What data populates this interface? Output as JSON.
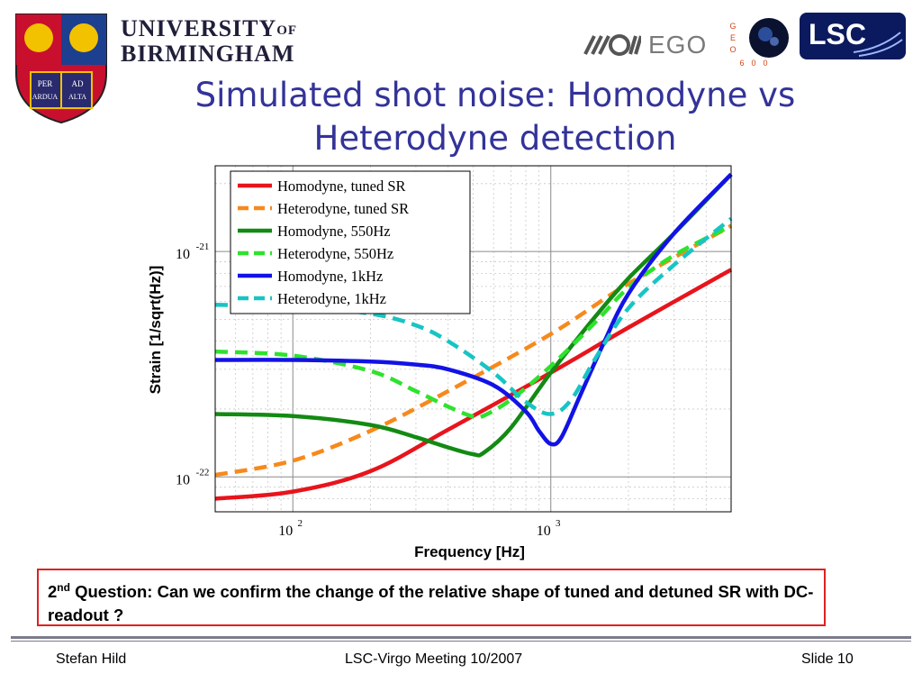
{
  "header": {
    "university_line1": "UNIVERSITY",
    "university_of": "OF",
    "university_line2": "BIRMINGHAM",
    "crest_motto": [
      "PER",
      "AD",
      "ARDUA",
      "ALTA"
    ],
    "ego_label": "EGO",
    "geo_letters": [
      "G",
      "E",
      "O",
      "6",
      "0",
      "0"
    ],
    "lsc_label": "LSC"
  },
  "slide": {
    "title_line1": "Simulated shot noise: Homodyne vs",
    "title_line2": "Heterodyne detection",
    "question_sup": "nd",
    "question_num": "2",
    "question_text": " Question: Can we confirm the change of the relative shape of tuned and detuned SR with DC-readout ?"
  },
  "footer": {
    "author": "Stefan Hild",
    "meeting": "LSC-Virgo Meeting 10/2007",
    "slide": "Slide 10"
  },
  "colors": {
    "title": "#333399",
    "red": "#e8141c",
    "orange": "#f7891c",
    "darkgreen": "#138a13",
    "lightgreen": "#2ee22e",
    "blue": "#1212e6",
    "cyan": "#18c4c4",
    "question_border": "#e02020"
  },
  "chart_data": {
    "type": "line",
    "xlabel": "Frequency [Hz]",
    "ylabel": "Strain [1/sqrt(Hz)]",
    "xscale": "log",
    "yscale": "log",
    "xlim": [
      50,
      5000
    ],
    "ylim": [
      7e-23,
      2.4e-21
    ],
    "xticks": [
      {
        "base": "10",
        "exp": "2",
        "value": 100
      },
      {
        "base": "10",
        "exp": "3",
        "value": 1000
      }
    ],
    "yticks": [
      {
        "base": "10",
        "exp": "-22",
        "value": 1e-22
      },
      {
        "base": "10",
        "exp": "-21",
        "value": 1e-21
      }
    ],
    "grid": true,
    "legend_position": "top-left",
    "series": [
      {
        "name": "Homodyne, tuned SR",
        "color": "red",
        "dash": false,
        "x": [
          50,
          100,
          200,
          400,
          1000,
          2000,
          5000
        ],
        "y": [
          8e-23,
          8.6e-23,
          1.06e-22,
          1.62e-22,
          2.9e-22,
          4.6e-22,
          8.3e-22
        ]
      },
      {
        "name": "Heterodyne, tuned SR",
        "color": "orange",
        "dash": true,
        "x": [
          50,
          100,
          200,
          400,
          1000,
          2000,
          5000
        ],
        "y": [
          1.02e-22,
          1.18e-22,
          1.6e-22,
          2.4e-22,
          4.3e-22,
          7.2e-22,
          1.3e-21
        ]
      },
      {
        "name": "Homodyne, 550Hz",
        "color": "darkgreen",
        "dash": false,
        "x": [
          50,
          100,
          200,
          300,
          400,
          500,
          550,
          700,
          1000,
          1500,
          2000,
          3000,
          5000
        ],
        "y": [
          1.9e-22,
          1.86e-22,
          1.7e-22,
          1.5e-22,
          1.35e-22,
          1.26e-22,
          1.28e-22,
          1.65e-22,
          2.9e-22,
          5.2e-22,
          7.6e-22,
          1.2e-21,
          2.2e-21
        ]
      },
      {
        "name": "Heterodyne, 550Hz",
        "color": "lightgreen",
        "dash": true,
        "x": [
          50,
          100,
          200,
          300,
          400,
          500,
          550,
          700,
          1000,
          1500,
          2000,
          3000,
          5000
        ],
        "y": [
          3.6e-22,
          3.45e-22,
          2.95e-22,
          2.4e-22,
          2.05e-22,
          1.85e-22,
          1.87e-22,
          2.2e-22,
          3.1e-22,
          4.9e-22,
          6.9e-22,
          9.6e-22,
          1.3e-21
        ]
      },
      {
        "name": "Homodyne, 1kHz",
        "color": "blue",
        "dash": false,
        "x": [
          50,
          100,
          200,
          300,
          400,
          600,
          800,
          900,
          1000,
          1100,
          1300,
          1600,
          2000,
          3000,
          5000
        ],
        "y": [
          3.3e-22,
          3.3e-22,
          3.25e-22,
          3.15e-22,
          3e-22,
          2.55e-22,
          1.95e-22,
          1.6e-22,
          1.4e-22,
          1.5e-22,
          2.3e-22,
          3.9e-22,
          6.5e-22,
          1.2e-21,
          2.2e-21
        ]
      },
      {
        "name": "Heterodyne, 1kHz",
        "color": "cyan",
        "dash": true,
        "x": [
          50,
          100,
          200,
          300,
          400,
          600,
          800,
          1000,
          1200,
          1500,
          2000,
          3000,
          5000
        ],
        "y": [
          5.8e-22,
          5.7e-22,
          5.3e-22,
          4.7e-22,
          4e-22,
          2.9e-22,
          2.15e-22,
          1.9e-22,
          2.2e-22,
          3.4e-22,
          5.6e-22,
          8.7e-22,
          1.4e-21
        ]
      }
    ]
  }
}
